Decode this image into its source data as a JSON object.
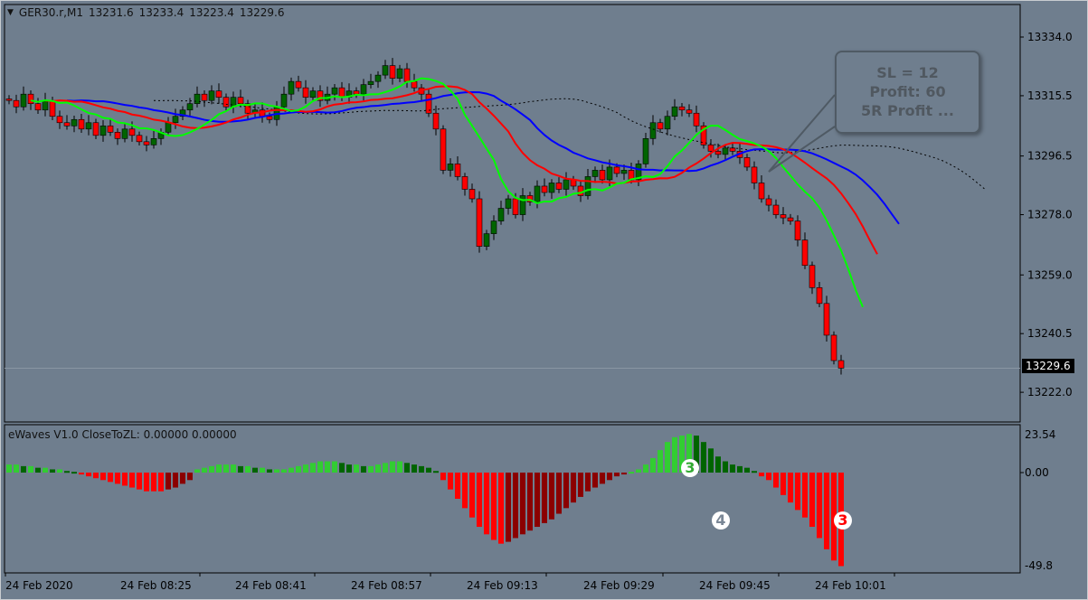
{
  "header": {
    "symbol": "GER30.r,M1",
    "open": "13231.6",
    "high": "13233.4",
    "low": "13223.4",
    "close": "13229.6",
    "menu_icon": "triangle-down-icon"
  },
  "callout": {
    "line1": "SL = 12",
    "line2": "Profit: 60",
    "line3": "5R Profit ..."
  },
  "indicator": {
    "title": "eWaves V1.0 CloseToZL: 0.00000 0.00000",
    "badges": [
      {
        "text": "3",
        "color": "#33aa33"
      },
      {
        "text": "4",
        "color": "#7a8796"
      },
      {
        "text": "3",
        "color": "#ff0000"
      }
    ]
  },
  "current_price": "13229.6",
  "colors": {
    "background": "#6f7e8e",
    "bull": "#006400",
    "bear": "#ff0000",
    "ma_fast": "#00ff00",
    "ma_mid": "#ff0000",
    "ma_slow": "#0000ff",
    "hist_up": "#32cd32",
    "hist_up_fall": "#006400",
    "hist_down": "#ff0000",
    "hist_down_rise": "#8b0000"
  },
  "chart_data": [
    {
      "type": "candlestick",
      "title": "GER30.r,M1",
      "timeframe": "M1",
      "price_ticks": [
        "13334.0",
        "13315.5",
        "13296.5",
        "13278.0",
        "13259.0",
        "13240.5",
        "13222.0"
      ],
      "ylim": [
        13215,
        13345
      ],
      "time_ticks": [
        "24 Feb 2020",
        "24 Feb 08:25",
        "24 Feb 08:41",
        "24 Feb 08:57",
        "24 Feb 09:13",
        "24 Feb 09:29",
        "24 Feb 09:45",
        "24 Feb 10:01"
      ],
      "closes": [
        13314,
        13312,
        13316,
        13313,
        13311,
        13314,
        13309,
        13307,
        13306,
        13308,
        13305,
        13307,
        13303,
        13306,
        13304,
        13302,
        13305,
        13303,
        13301,
        13300,
        13302,
        13304,
        13307,
        13309,
        13311,
        13313,
        13316,
        13314,
        13317,
        13315,
        13312,
        13315,
        13313,
        13310,
        13311,
        13309,
        13308,
        13312,
        13316,
        13320,
        13318,
        13315,
        13317,
        13314,
        13316,
        13318,
        13315,
        13317,
        13316,
        13319,
        13320,
        13322,
        13325,
        13321,
        13324,
        13320,
        13318,
        13316,
        13310,
        13305,
        13292,
        13294,
        13290,
        13286,
        13283,
        13268,
        13272,
        13276,
        13280,
        13283,
        13278,
        13284,
        13282,
        13287,
        13285,
        13288,
        13286,
        13289,
        13287,
        13284,
        13290,
        13292,
        13289,
        13293,
        13291,
        13292,
        13289,
        13294,
        13302,
        13307,
        13305,
        13309,
        13312,
        13311,
        13310,
        13306,
        13300,
        13298,
        13297,
        13299,
        13298,
        13296,
        13293,
        13288,
        13283,
        13281,
        13278,
        13277,
        13276,
        13270,
        13262,
        13255,
        13250,
        13240,
        13232,
        13229.6
      ],
      "overlays": [
        "fast MA (green)",
        "medium MA (red)",
        "slow MA (blue)",
        "long MA (dotted black)"
      ]
    },
    {
      "type": "bar",
      "title": "eWaves V1.0 CloseToZL",
      "ylim": [
        -49.8,
        23.54
      ],
      "y_ticks": [
        "23.54",
        "0.00",
        "-49.8"
      ],
      "values": [
        5,
        5,
        4,
        4,
        3,
        3,
        2,
        2,
        1,
        0.5,
        -1,
        -2,
        -3,
        -4,
        -5,
        -6,
        -7,
        -8,
        -9,
        -10,
        -10,
        -10,
        -9,
        -8,
        -6,
        -4,
        2,
        3,
        4,
        5,
        5,
        5,
        4,
        4,
        3,
        3,
        2,
        2,
        2,
        3,
        4,
        5,
        6,
        7,
        7,
        7,
        6,
        5,
        5,
        4,
        4,
        5,
        6,
        7,
        7,
        6,
        5,
        4,
        3,
        1,
        -4,
        -9,
        -14,
        -19,
        -24,
        -29,
        -33,
        -36,
        -38,
        -37,
        -35,
        -33,
        -31,
        -29,
        -27,
        -25,
        -22,
        -19,
        -16,
        -13,
        -10,
        -8,
        -6,
        -4,
        -2,
        -1,
        0.5,
        2,
        5,
        9,
        14,
        19,
        22,
        23,
        24,
        23,
        19,
        15,
        10,
        7,
        5,
        4,
        3,
        1,
        -2,
        -4,
        -8,
        -12,
        -16,
        -20,
        -24,
        -29,
        -35,
        -41,
        -47,
        -50
      ]
    }
  ]
}
